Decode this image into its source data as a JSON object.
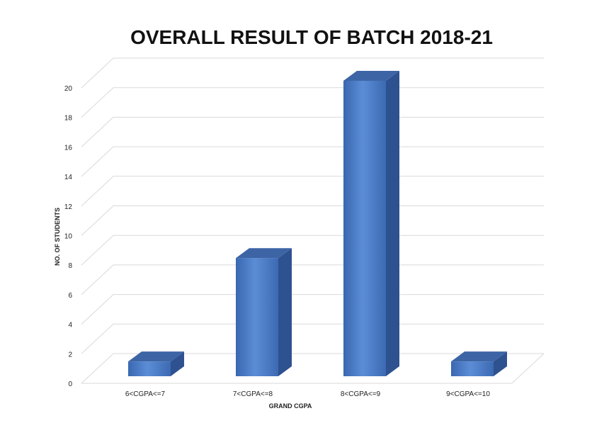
{
  "chart_data": {
    "type": "bar",
    "title": "OVERALL RESULT OF BATCH 2018-21",
    "xlabel": "GRAND CGPA",
    "ylabel": "NO. OF STUDENTS",
    "categories": [
      "6<CGPA<=7",
      "7<CGPA<=8",
      "8<CGPA<=9",
      "9<CGPA<=10"
    ],
    "values": [
      1,
      8,
      20,
      1
    ],
    "ylim": [
      0,
      20
    ],
    "yticks": [
      "0",
      "2",
      "4",
      "6",
      "8",
      "10",
      "12",
      "14",
      "16",
      "18",
      "20"
    ],
    "grid": true,
    "three_d": true,
    "colors": {
      "bar_front": "#4a7cc4",
      "bar_side": "#2e5190",
      "bar_top": "#3d65a6",
      "grid": "#d9d9d9"
    }
  }
}
